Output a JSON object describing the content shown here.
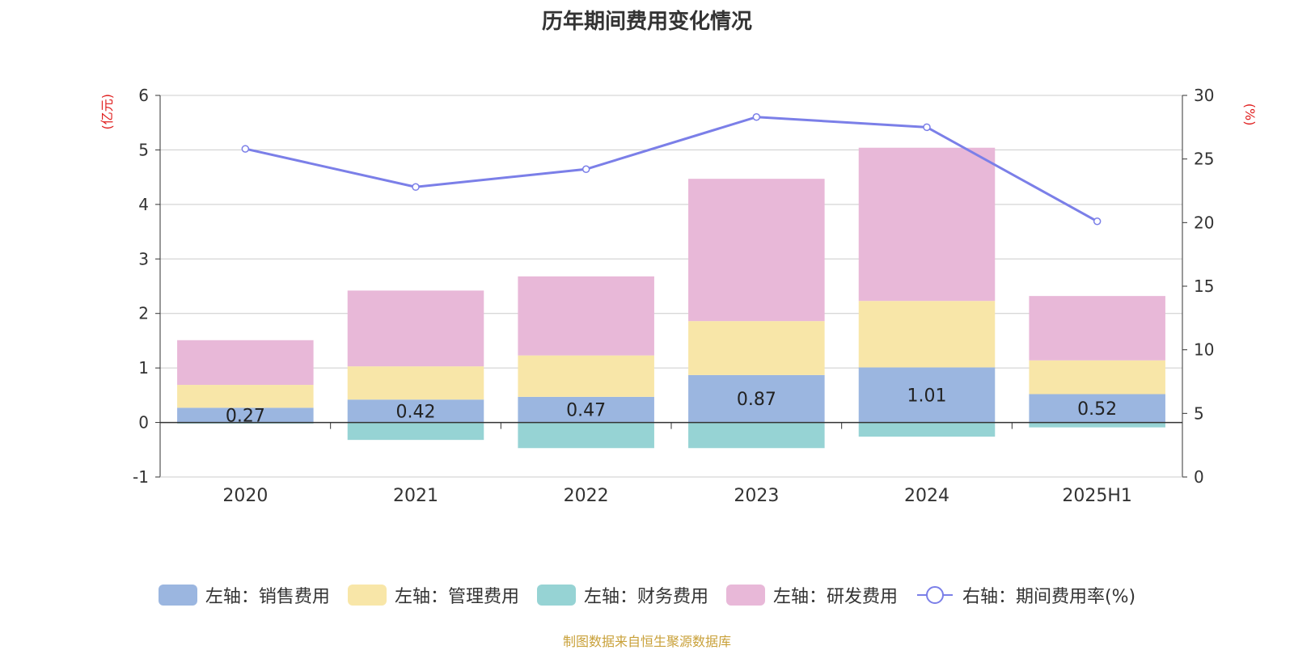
{
  "chart_data": {
    "type": "bar",
    "title": "历年期间费用变化情况",
    "categories": [
      "2020",
      "2021",
      "2022",
      "2023",
      "2024",
      "2025H1"
    ],
    "y_left": {
      "label": "(亿元)",
      "range": [
        -1,
        6
      ],
      "ticks": [
        -1,
        0,
        1,
        2,
        3,
        4,
        5,
        6
      ]
    },
    "y_right": {
      "label": "(%)",
      "range": [
        0,
        30
      ],
      "ticks": [
        0,
        5,
        10,
        15,
        20,
        25,
        30
      ]
    },
    "series": [
      {
        "name": "左轴：销售费用",
        "type": "bar",
        "axis": "left",
        "color": "#9bb6e0",
        "values": [
          0.27,
          0.42,
          0.47,
          0.87,
          1.01,
          0.52
        ],
        "data_labels": [
          "0.27",
          "0.42",
          "0.47",
          "0.87",
          "1.01",
          "0.52"
        ]
      },
      {
        "name": "左轴：管理费用",
        "type": "bar",
        "axis": "left",
        "color": "#f8e6a8",
        "values": [
          0.42,
          0.61,
          0.76,
          0.99,
          1.22,
          0.62
        ]
      },
      {
        "name": "左轴：财务费用",
        "type": "bar",
        "axis": "left",
        "color": "#96d3d4",
        "values": [
          -0.02,
          -0.32,
          -0.47,
          -0.47,
          -0.26,
          -0.09
        ]
      },
      {
        "name": "左轴：研发费用",
        "type": "bar",
        "axis": "left",
        "color": "#e8b8d8",
        "values": [
          0.82,
          1.39,
          1.45,
          2.61,
          2.81,
          1.18
        ]
      },
      {
        "name": "右轴：期间费用率(%)",
        "type": "line",
        "axis": "right",
        "color": "#7b7fe8",
        "values": [
          25.8,
          22.8,
          24.2,
          28.3,
          27.5,
          20.1
        ]
      }
    ],
    "grid": true,
    "legend_position": "bottom"
  },
  "footer": {
    "source": "制图数据来自恒生聚源数据库"
  }
}
